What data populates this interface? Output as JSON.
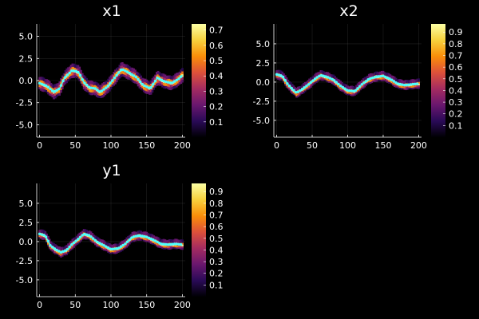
{
  "figure": {
    "background": "#000000",
    "series_color": "#4dffff",
    "density_colormap": [
      "#000004",
      "#2a0a57",
      "#6a176e",
      "#a52c60",
      "#dd513a",
      "#f98e09",
      "#f7d13d",
      "#fcffa4"
    ]
  },
  "chart_data": [
    {
      "type": "heatmap",
      "title": "x1",
      "xlabel": "",
      "ylabel": "",
      "xlim": [
        -4,
        204
      ],
      "ylim": [
        -6.4,
        6.4
      ],
      "xticks": [
        0,
        50,
        100,
        150,
        200
      ],
      "xtick_labels": [
        "0",
        "50",
        "100",
        "150",
        "200"
      ],
      "yticks": [
        -5.0,
        -2.5,
        0.0,
        2.5,
        5.0
      ],
      "ytick_labels": [
        "-5.0",
        "-2.5",
        "0.0",
        "2.5",
        "5.0"
      ],
      "grid": true,
      "colorbar": {
        "range": [
          0,
          0.74
        ],
        "ticks": [
          0.1,
          0.2,
          0.3,
          0.4,
          0.5,
          0.6,
          0.7
        ],
        "tick_labels": [
          "0.1",
          "0.2",
          "0.3",
          "0.4",
          "0.5",
          "0.6",
          "0.7"
        ]
      },
      "trace_x": [
        0,
        10,
        20,
        28,
        35,
        45,
        50,
        55,
        62,
        70,
        78,
        85,
        95,
        105,
        115,
        125,
        135,
        145,
        155,
        165,
        175,
        185,
        195,
        200
      ],
      "trace_y": [
        -0.3,
        -0.6,
        -1.3,
        -0.9,
        0.3,
        1.1,
        1.1,
        0.9,
        -0.2,
        -0.8,
        -0.9,
        -1.3,
        -0.7,
        0.3,
        1.3,
        0.9,
        0.4,
        -0.5,
        -0.9,
        0.3,
        -0.1,
        -0.3,
        0.2,
        0.6
      ]
    },
    {
      "type": "heatmap",
      "title": "x2",
      "xlabel": "",
      "ylabel": "",
      "xlim": [
        -4,
        204
      ],
      "ylim": [
        -7.2,
        7.6
      ],
      "xticks": [
        0,
        50,
        100,
        150,
        200
      ],
      "xtick_labels": [
        "0",
        "50",
        "100",
        "150",
        "200"
      ],
      "yticks": [
        -5.0,
        -2.5,
        0.0,
        2.5,
        5.0
      ],
      "ytick_labels": [
        "-5.0",
        "-2.5",
        "0.0",
        "2.5",
        "5.0"
      ],
      "grid": true,
      "colorbar": {
        "range": [
          0,
          0.97
        ],
        "ticks": [
          0.1,
          0.2,
          0.3,
          0.4,
          0.5,
          0.6,
          0.7,
          0.8,
          0.9
        ],
        "tick_labels": [
          "0.1",
          "0.2",
          "0.3",
          "0.4",
          "0.5",
          "0.6",
          "0.7",
          "0.8",
          "0.9"
        ]
      },
      "trace_x": [
        0,
        8,
        15,
        22,
        28,
        35,
        45,
        55,
        62,
        70,
        80,
        90,
        100,
        110,
        120,
        130,
        140,
        150,
        160,
        170,
        180,
        190,
        200
      ],
      "trace_y": [
        1.0,
        0.8,
        -0.2,
        -0.9,
        -1.4,
        -1.0,
        -0.3,
        0.5,
        0.9,
        0.7,
        0.3,
        -0.5,
        -1.1,
        -1.2,
        -0.3,
        0.4,
        0.7,
        0.8,
        0.4,
        -0.2,
        -0.4,
        -0.3,
        -0.2
      ]
    },
    {
      "type": "heatmap",
      "title": "y1",
      "xlabel": "",
      "ylabel": "",
      "xlim": [
        -4,
        204
      ],
      "ylim": [
        -7.2,
        7.6
      ],
      "xticks": [
        0,
        50,
        100,
        150,
        200
      ],
      "xtick_labels": [
        "0",
        "50",
        "100",
        "150",
        "200"
      ],
      "yticks": [
        -5.0,
        -2.5,
        0.0,
        2.5,
        5.0
      ],
      "ytick_labels": [
        "-5.0",
        "-2.5",
        "0.0",
        "2.5",
        "5.0"
      ],
      "grid": true,
      "colorbar": {
        "range": [
          0,
          0.97
        ],
        "ticks": [
          0.1,
          0.2,
          0.3,
          0.4,
          0.5,
          0.6,
          0.7,
          0.8,
          0.9
        ],
        "tick_labels": [
          "0.1",
          "0.2",
          "0.3",
          "0.4",
          "0.5",
          "0.6",
          "0.7",
          "0.8",
          "0.9"
        ]
      },
      "trace_x": [
        0,
        8,
        15,
        22,
        30,
        38,
        45,
        55,
        62,
        70,
        80,
        90,
        100,
        110,
        120,
        130,
        140,
        150,
        160,
        170,
        180,
        190,
        200
      ],
      "trace_y": [
        1.0,
        0.8,
        -0.5,
        -1.0,
        -1.4,
        -1.1,
        -0.4,
        0.4,
        1.0,
        0.8,
        0.0,
        -0.5,
        -1.0,
        -0.9,
        -0.3,
        0.6,
        0.8,
        0.6,
        0.2,
        -0.3,
        -0.4,
        -0.3,
        -0.4
      ]
    }
  ]
}
